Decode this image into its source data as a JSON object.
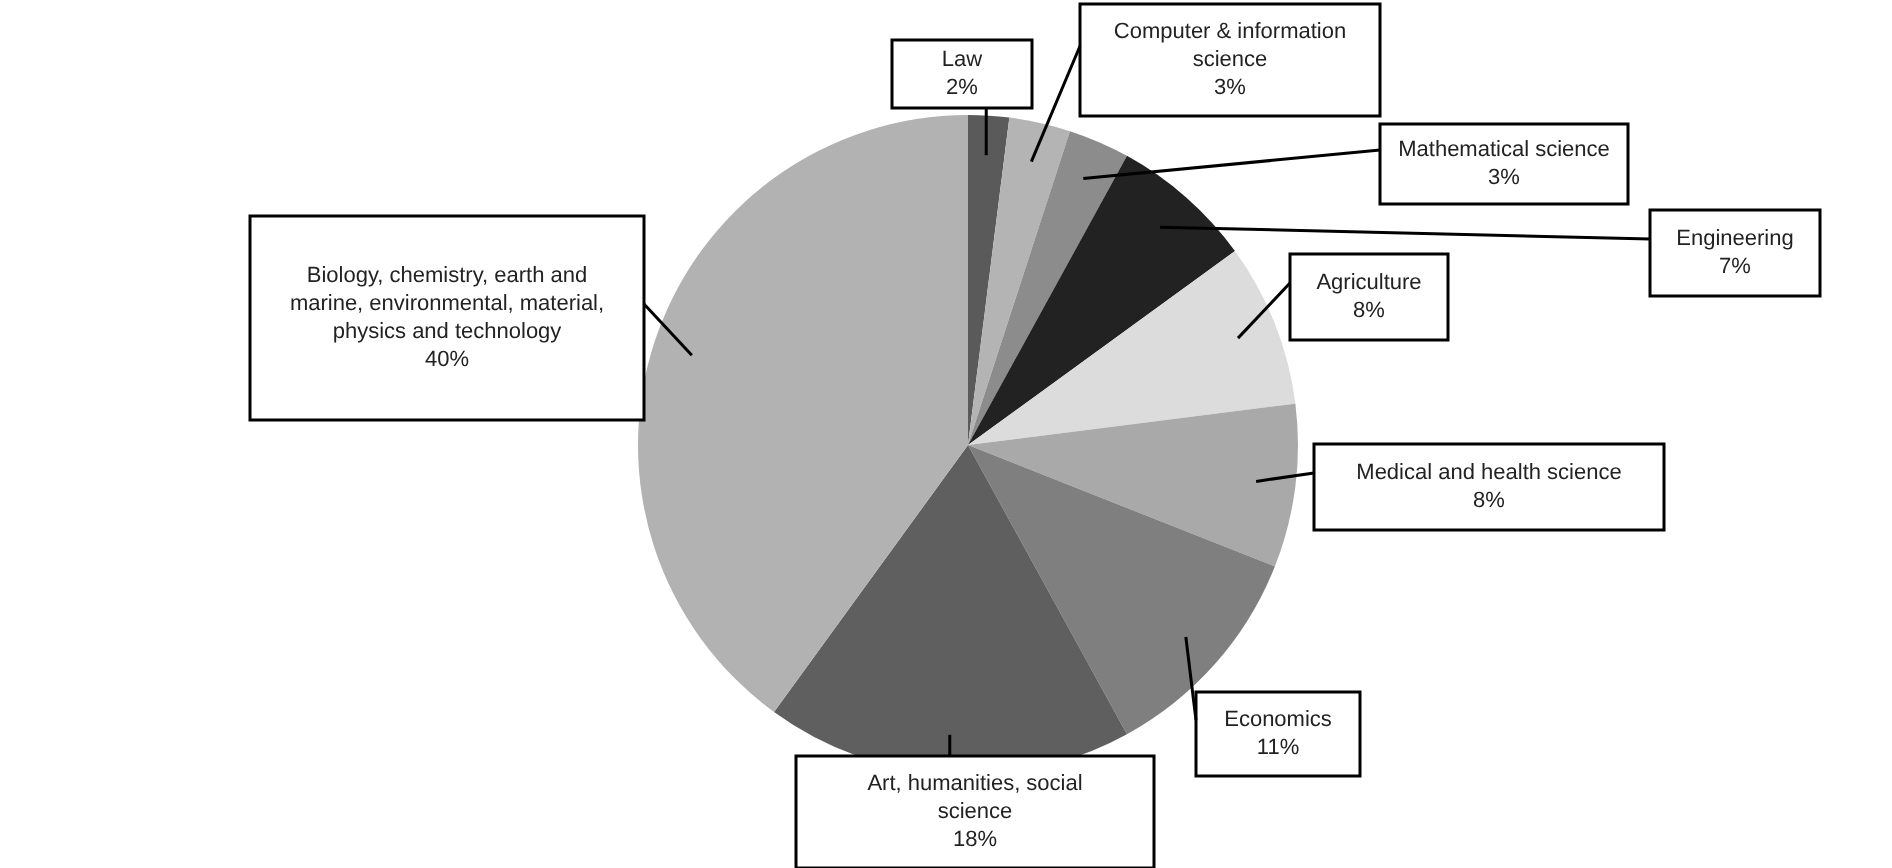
{
  "chart_data": {
    "type": "pie",
    "categories": [
      "Law",
      "Computer & information science",
      "Mathematical science",
      "Engineering",
      "Agriculture",
      "Medical and health science",
      "Economics",
      "Art, humanities, social science",
      "Biology, chemistry, earth and marine, environmental, material, physics and technology"
    ],
    "values": [
      2,
      3,
      3,
      7,
      8,
      8,
      11,
      18,
      40
    ],
    "colors": [
      "#5a5a5a",
      "#b4b4b4",
      "#8c8c8c",
      "#222222",
      "#dcdcdc",
      "#a9a9a9",
      "#7f7f7f",
      "#5f5f5f",
      "#b2b2b2"
    ],
    "value_labels": [
      "2%",
      "3%",
      "3%",
      "7%",
      "8%",
      "8%",
      "11%",
      "18%",
      "40%"
    ],
    "legend": false
  }
}
